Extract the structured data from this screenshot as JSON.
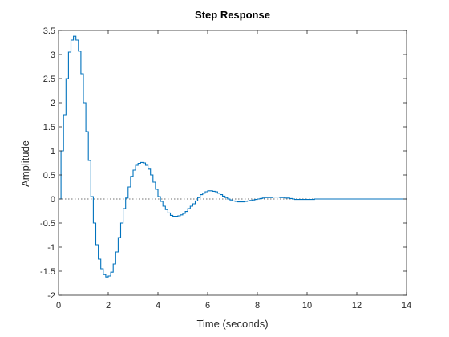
{
  "chart_data": {
    "type": "line",
    "title": "Step Response",
    "xlabel": "Time (seconds)",
    "ylabel": "Amplitude",
    "xlim": [
      0,
      14
    ],
    "ylim": [
      -2,
      3.5
    ],
    "xticks": [
      0,
      2,
      4,
      6,
      8,
      10,
      12,
      14
    ],
    "yticks": [
      -2,
      -1.5,
      -1,
      -0.5,
      0,
      0.5,
      1,
      1.5,
      2,
      2.5,
      3,
      3.5
    ],
    "xtick_labels": [
      "0",
      "2",
      "4",
      "6",
      "8",
      "10",
      "12",
      "14"
    ],
    "ytick_labels": [
      "-2",
      "-1.5",
      "-1",
      "-0.5",
      "0",
      "0.5",
      "1",
      "1.5",
      "2",
      "2.5",
      "3",
      "3.5"
    ],
    "grid": false,
    "steady_state_reference": 0,
    "series": [
      {
        "color": "#0072BD",
        "style": "stairs",
        "x": [
          0,
          0.1,
          0.2,
          0.3,
          0.4,
          0.5,
          0.6,
          0.7,
          0.8,
          0.9,
          1.0,
          1.1,
          1.2,
          1.3,
          1.4,
          1.5,
          1.6,
          1.7,
          1.8,
          1.9,
          2.0,
          2.1,
          2.2,
          2.3,
          2.4,
          2.5,
          2.6,
          2.7,
          2.8,
          2.9,
          3.0,
          3.1,
          3.2,
          3.3,
          3.4,
          3.5,
          3.6,
          3.7,
          3.8,
          3.9,
          4.0,
          4.1,
          4.2,
          4.3,
          4.4,
          4.5,
          4.6,
          4.7,
          4.8,
          4.9,
          5.0,
          5.1,
          5.2,
          5.3,
          5.4,
          5.5,
          5.6,
          5.7,
          5.8,
          5.9,
          6.0,
          6.1,
          6.2,
          6.3,
          6.4,
          6.5,
          6.6,
          6.7,
          6.8,
          6.9,
          7.0,
          7.1,
          7.2,
          7.3,
          7.4,
          7.5,
          7.6,
          7.7,
          7.8,
          7.9,
          8.0,
          8.1,
          8.2,
          8.3,
          8.4,
          8.5,
          8.6,
          8.7,
          8.8,
          8.9,
          9.0,
          9.1,
          9.2,
          9.3,
          9.4,
          9.5,
          9.6,
          9.7,
          9.8,
          9.9,
          10.0,
          10.1,
          10.2,
          10.3,
          10.4,
          10.5,
          10.6,
          10.7,
          10.8,
          10.9,
          11.0,
          11.1,
          11.2,
          14.0
        ],
        "y": [
          0,
          1.0,
          1.75,
          2.5,
          3.05,
          3.3,
          3.38,
          3.3,
          3.07,
          2.6,
          2.0,
          1.4,
          0.8,
          0.05,
          -0.5,
          -0.95,
          -1.25,
          -1.45,
          -1.57,
          -1.62,
          -1.6,
          -1.52,
          -1.35,
          -1.1,
          -0.8,
          -0.5,
          -0.2,
          0.02,
          0.25,
          0.47,
          0.6,
          0.7,
          0.74,
          0.76,
          0.75,
          0.7,
          0.62,
          0.5,
          0.35,
          0.2,
          0.05,
          -0.05,
          -0.15,
          -0.22,
          -0.29,
          -0.34,
          -0.36,
          -0.36,
          -0.35,
          -0.33,
          -0.3,
          -0.26,
          -0.2,
          -0.15,
          -0.1,
          -0.04,
          0.03,
          0.09,
          0.12,
          0.15,
          0.17,
          0.17,
          0.16,
          0.15,
          0.12,
          0.09,
          0.06,
          0.03,
          0.0,
          -0.02,
          -0.04,
          -0.05,
          -0.06,
          -0.06,
          -0.06,
          -0.05,
          -0.04,
          -0.03,
          -0.02,
          -0.01,
          0.0,
          0.01,
          0.02,
          0.03,
          0.03,
          0.03,
          0.04,
          0.04,
          0.04,
          0.03,
          0.03,
          0.02,
          0.02,
          0.01,
          0.0,
          -0.01,
          -0.01,
          -0.01,
          -0.01,
          -0.01,
          -0.01,
          -0.01,
          -0.01,
          0.0,
          0.0,
          0.0,
          0.0,
          0.0,
          0.0,
          0.0,
          0.0,
          0.0,
          0.0,
          0.0
        ]
      }
    ]
  }
}
